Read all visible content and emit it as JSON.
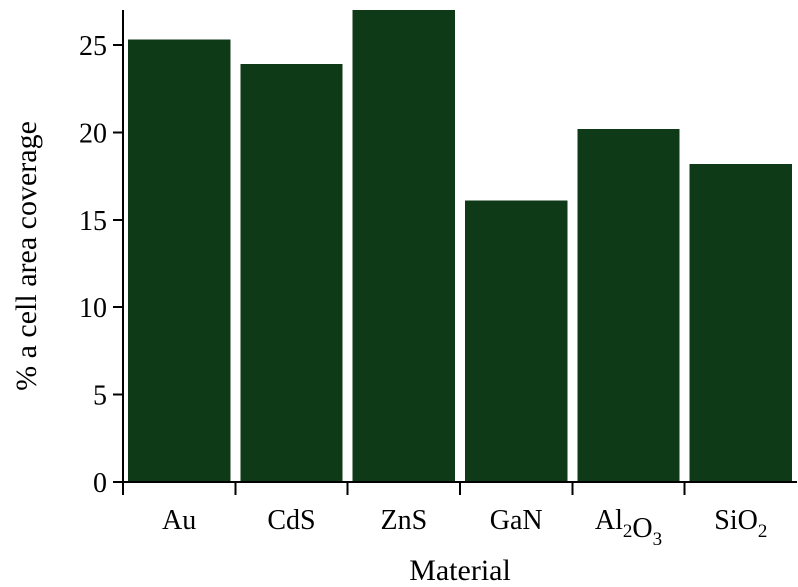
{
  "chart_data": {
    "type": "bar",
    "title": "",
    "xlabel": "Material",
    "ylabel": "% a cell area coverage",
    "categories": [
      {
        "base": "Au",
        "parts": [
          {
            "t": "Au",
            "sub": false
          }
        ]
      },
      {
        "base": "CdS",
        "parts": [
          {
            "t": "CdS",
            "sub": false
          }
        ]
      },
      {
        "base": "ZnS",
        "parts": [
          {
            "t": "ZnS",
            "sub": false
          }
        ]
      },
      {
        "base": "GaN",
        "parts": [
          {
            "t": "GaN",
            "sub": false
          }
        ]
      },
      {
        "base": "Al2O3",
        "parts": [
          {
            "t": "Al",
            "sub": false
          },
          {
            "t": "2",
            "sub": true
          },
          {
            "t": "O",
            "sub": false
          },
          {
            "t": "3",
            "sub": true
          }
        ]
      },
      {
        "base": "SiO2",
        "parts": [
          {
            "t": "SiO",
            "sub": false
          },
          {
            "t": "2",
            "sub": true
          }
        ]
      }
    ],
    "values": [
      25.3,
      23.9,
      27.0,
      16.1,
      20.2,
      18.2
    ],
    "ylim": [
      0,
      27
    ],
    "yticks": [
      0,
      5,
      10,
      15,
      20,
      25
    ],
    "bar_color": "#0f3a18",
    "grid": false,
    "legend": "none"
  }
}
